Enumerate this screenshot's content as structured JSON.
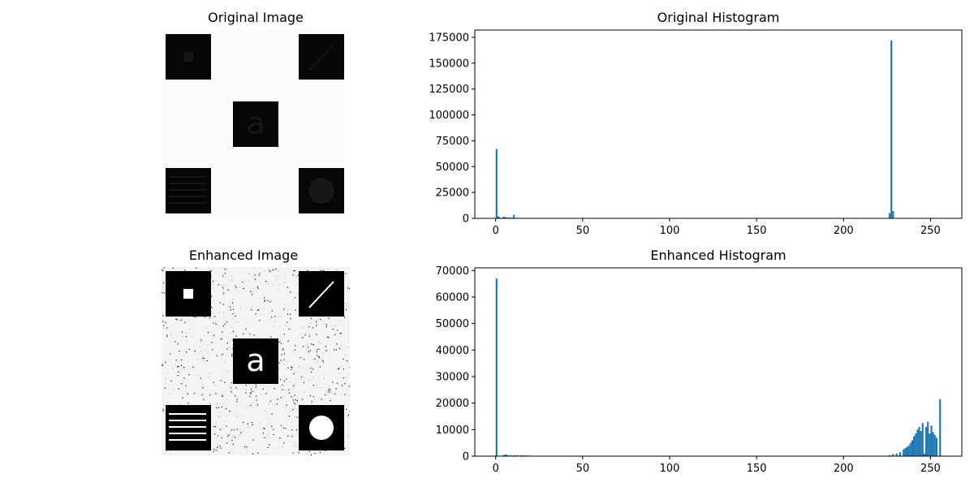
{
  "titles": {
    "original_image": "Original Image",
    "original_histogram": "Original Histogram",
    "enhanced_image": "Enhanced Image",
    "enhanced_histogram": "Enhanced Histogram"
  },
  "colors": {
    "bar": "#1f77b4",
    "axis": "#000000"
  },
  "images": {
    "original": {
      "background_gray": "#fcfcfc",
      "square_gray": "#060606",
      "feature_gray": "#161616"
    },
    "enhanced": {
      "background_gray": "#f4f4f4",
      "square_gray": "#000000",
      "feature_gray": "#ffffff"
    }
  },
  "chart_data": [
    {
      "type": "bar",
      "title": "Original Histogram",
      "xlim": [
        -12,
        268
      ],
      "ylim": [
        0,
        182000
      ],
      "xticks": [
        0,
        50,
        100,
        150,
        200,
        250
      ],
      "yticks": [
        0,
        25000,
        50000,
        75000,
        100000,
        125000,
        150000,
        175000
      ],
      "x": [
        0,
        1,
        2,
        3,
        4,
        5,
        6,
        7,
        8,
        9,
        10,
        226,
        227,
        228
      ],
      "values": [
        67000,
        2000,
        700,
        400,
        1500,
        1200,
        600,
        800,
        700,
        600,
        3500,
        5000,
        172000,
        7000
      ]
    },
    {
      "type": "bar",
      "title": "Enhanced Histogram",
      "xlim": [
        -12,
        268
      ],
      "ylim": [
        0,
        71000
      ],
      "xticks": [
        0,
        50,
        100,
        150,
        200,
        250
      ],
      "yticks": [
        0,
        10000,
        20000,
        30000,
        40000,
        50000,
        60000,
        70000
      ],
      "x": [
        0,
        4,
        5,
        6,
        8,
        10,
        12,
        14,
        16,
        18,
        224,
        226,
        228,
        230,
        232,
        234,
        235,
        236,
        237,
        238,
        239,
        240,
        241,
        242,
        243,
        244,
        245,
        246,
        247,
        248,
        249,
        250,
        251,
        252,
        253,
        255
      ],
      "values": [
        67000,
        400,
        600,
        500,
        400,
        300,
        400,
        350,
        300,
        300,
        200,
        400,
        800,
        1000,
        1500,
        2500,
        3000,
        3500,
        4000,
        5000,
        6000,
        7500,
        8500,
        10000,
        11000,
        9500,
        12500,
        1000,
        11000,
        13000,
        8500,
        11500,
        9000,
        8000,
        7000,
        21500
      ]
    }
  ]
}
